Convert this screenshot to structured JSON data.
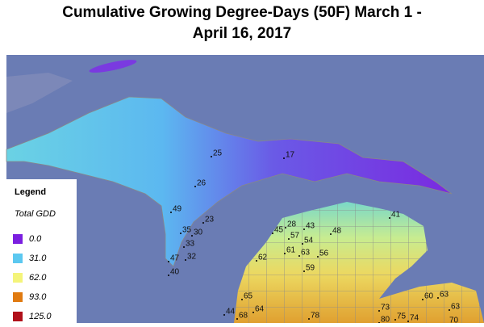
{
  "header": {
    "title": [
      "Cumulative Growing Degree-Days (50F) March 1 -",
      "April 16, 2017"
    ]
  },
  "legend": {
    "title": "Legend",
    "subtitle": "Total GDD",
    "entries": [
      {
        "label": "0.0",
        "color": "#7b1fe0"
      },
      {
        "label": "31.0",
        "color": "#5cc8f0"
      },
      {
        "label": "62.0",
        "color": "#f4f47a"
      },
      {
        "label": "93.0",
        "color": "#e07a10"
      },
      {
        "label": "125.0",
        "color": "#b0101a"
      }
    ]
  },
  "stations": [
    25,
    17,
    26,
    49,
    23,
    35,
    30,
    33,
    32,
    47,
    40,
    28,
    45,
    57,
    43,
    48,
    41,
    54,
    61,
    63,
    56,
    62,
    59,
    65,
    44,
    68,
    64,
    78,
    73,
    80,
    75,
    74,
    60,
    63,
    63,
    70
  ]
}
